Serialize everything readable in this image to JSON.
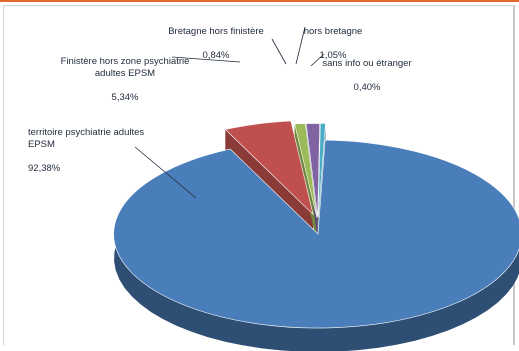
{
  "chart_data": {
    "type": "pie",
    "title": "",
    "style": "3d-exploded",
    "legend": "none",
    "slices": [
      {
        "label": "territoire psychiatrie adultes EPSM",
        "value": 92.38,
        "value_text": "92,38%",
        "color": "#4a7ebb"
      },
      {
        "label": "Finistère hors zone psychiatrie adultes EPSM",
        "value": 5.34,
        "value_text": "5,34%",
        "color": "#c0504d"
      },
      {
        "label": "Bretagne hors finistère",
        "value": 0.84,
        "value_text": "0,84%",
        "color": "#9bbb59"
      },
      {
        "label": "hors bretagne",
        "value": 1.05,
        "value_text": "1,05%",
        "color": "#8064a2"
      },
      {
        "label": "sans info ou étranger",
        "value": 0.4,
        "value_text": "0,40%",
        "color": "#4bacc6"
      }
    ]
  }
}
